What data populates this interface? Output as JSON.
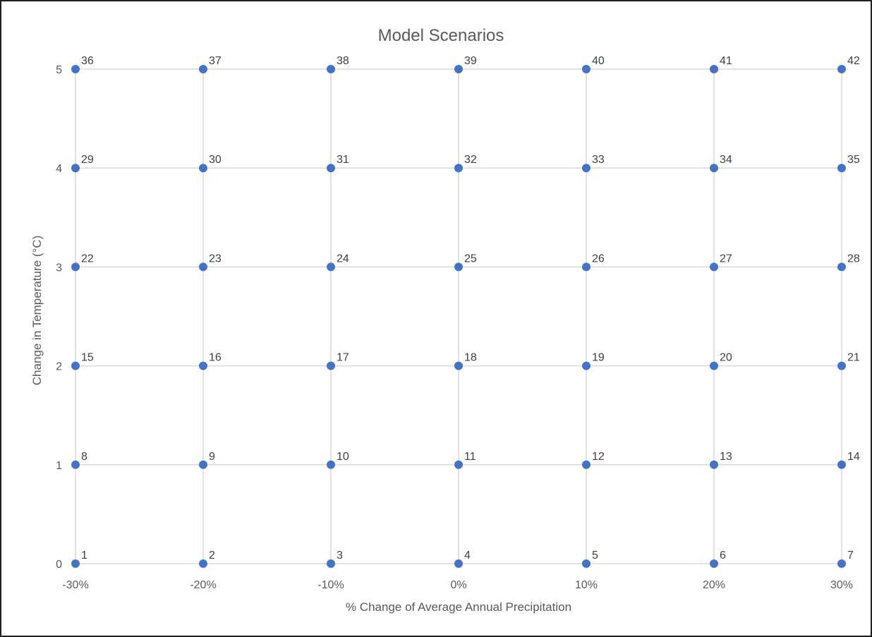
{
  "chart_data": {
    "type": "scatter",
    "title": "Model Scenarios",
    "xlabel": "% Change of Average Annual Precipitation",
    "ylabel": "Change in Temperature (°C)",
    "x_ticks": [
      "-30%",
      "-20%",
      "-10%",
      "0%",
      "10%",
      "20%",
      "30%"
    ],
    "y_ticks": [
      "0",
      "1",
      "2",
      "3",
      "4",
      "5"
    ],
    "xlim": [
      -30,
      30
    ],
    "ylim": [
      0,
      5
    ],
    "grid": true,
    "marker_color": "#4472C4",
    "points": [
      {
        "x": -30,
        "y": 0,
        "label": "1"
      },
      {
        "x": -20,
        "y": 0,
        "label": "2"
      },
      {
        "x": -10,
        "y": 0,
        "label": "3"
      },
      {
        "x": 0,
        "y": 0,
        "label": "4"
      },
      {
        "x": 10,
        "y": 0,
        "label": "5"
      },
      {
        "x": 20,
        "y": 0,
        "label": "6"
      },
      {
        "x": 30,
        "y": 0,
        "label": "7"
      },
      {
        "x": -30,
        "y": 1,
        "label": "8"
      },
      {
        "x": -20,
        "y": 1,
        "label": "9"
      },
      {
        "x": -10,
        "y": 1,
        "label": "10"
      },
      {
        "x": 0,
        "y": 1,
        "label": "11"
      },
      {
        "x": 10,
        "y": 1,
        "label": "12"
      },
      {
        "x": 20,
        "y": 1,
        "label": "13"
      },
      {
        "x": 30,
        "y": 1,
        "label": "14"
      },
      {
        "x": -30,
        "y": 2,
        "label": "15"
      },
      {
        "x": -20,
        "y": 2,
        "label": "16"
      },
      {
        "x": -10,
        "y": 2,
        "label": "17"
      },
      {
        "x": 0,
        "y": 2,
        "label": "18"
      },
      {
        "x": 10,
        "y": 2,
        "label": "19"
      },
      {
        "x": 20,
        "y": 2,
        "label": "20"
      },
      {
        "x": 30,
        "y": 2,
        "label": "21"
      },
      {
        "x": -30,
        "y": 3,
        "label": "22"
      },
      {
        "x": -20,
        "y": 3,
        "label": "23"
      },
      {
        "x": -10,
        "y": 3,
        "label": "24"
      },
      {
        "x": 0,
        "y": 3,
        "label": "25"
      },
      {
        "x": 10,
        "y": 3,
        "label": "26"
      },
      {
        "x": 20,
        "y": 3,
        "label": "27"
      },
      {
        "x": 30,
        "y": 3,
        "label": "28"
      },
      {
        "x": -30,
        "y": 4,
        "label": "29"
      },
      {
        "x": -20,
        "y": 4,
        "label": "30"
      },
      {
        "x": -10,
        "y": 4,
        "label": "31"
      },
      {
        "x": 0,
        "y": 4,
        "label": "32"
      },
      {
        "x": 10,
        "y": 4,
        "label": "33"
      },
      {
        "x": 20,
        "y": 4,
        "label": "34"
      },
      {
        "x": 30,
        "y": 4,
        "label": "35"
      },
      {
        "x": -30,
        "y": 5,
        "label": "36"
      },
      {
        "x": -20,
        "y": 5,
        "label": "37"
      },
      {
        "x": -10,
        "y": 5,
        "label": "38"
      },
      {
        "x": 0,
        "y": 5,
        "label": "39"
      },
      {
        "x": 10,
        "y": 5,
        "label": "40"
      },
      {
        "x": 20,
        "y": 5,
        "label": "41"
      },
      {
        "x": 30,
        "y": 5,
        "label": "42"
      }
    ]
  }
}
